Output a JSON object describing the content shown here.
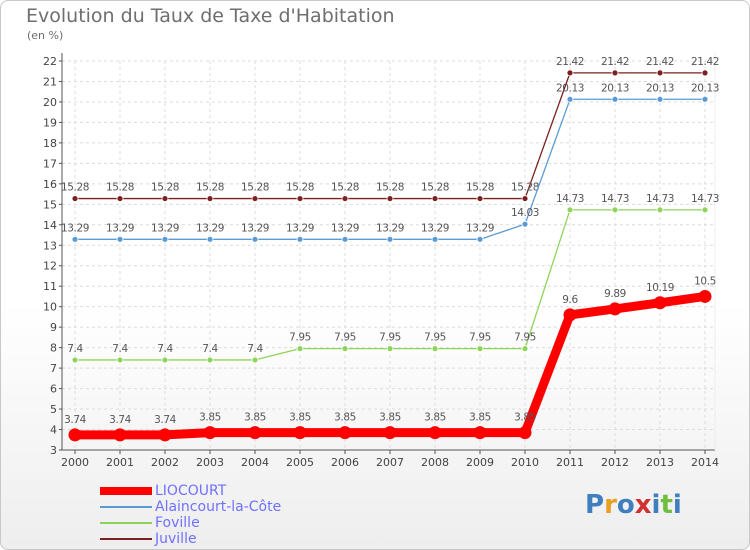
{
  "header": {
    "title": "Evolution du Taux de Taxe d'Habitation",
    "unit": "(en %)"
  },
  "logo": {
    "text": "Proxiti"
  },
  "chart_data": {
    "type": "line",
    "title": "Evolution du Taux de Taxe d'Habitation",
    "ylabel": "(en %)",
    "xlabel": "",
    "ylim": [
      3,
      22
    ],
    "yticks": [
      3,
      4,
      5,
      6,
      7,
      8,
      9,
      10,
      11,
      12,
      13,
      14,
      15,
      16,
      17,
      18,
      19,
      20,
      21,
      22
    ],
    "grid": true,
    "legend": "bottom-left",
    "categories": [
      "2000",
      "2001",
      "2002",
      "2003",
      "2004",
      "2005",
      "2006",
      "2007",
      "2008",
      "2009",
      "2010",
      "2011",
      "2012",
      "2013",
      "2014"
    ],
    "series": [
      {
        "name": "LIOCOURT",
        "color": "#ff0000",
        "emphasis": true,
        "values": [
          3.74,
          3.74,
          3.74,
          3.85,
          3.85,
          3.85,
          3.85,
          3.85,
          3.85,
          3.85,
          3.85,
          9.6,
          9.89,
          10.19,
          10.5
        ],
        "labels": [
          "3.74",
          "3.74",
          "3.74",
          "3.85",
          "3.85",
          "3.85",
          "3.85",
          "3.85",
          "3.85",
          "3.85",
          "3.85",
          "9.6",
          "9.89",
          "10.19",
          "10.5"
        ]
      },
      {
        "name": "Alaincourt-la-Côte",
        "color": "#5b9bd5",
        "values": [
          13.29,
          13.29,
          13.29,
          13.29,
          13.29,
          13.29,
          13.29,
          13.29,
          13.29,
          13.29,
          14.03,
          20.13,
          20.13,
          20.13,
          20.13
        ],
        "labels": [
          "13.29",
          "13.29",
          "13.29",
          "13.29",
          "13.29",
          "13.29",
          "13.29",
          "13.29",
          "13.29",
          "13.29",
          "14.03",
          "20.13",
          "20.13",
          "20.13",
          "20.13"
        ]
      },
      {
        "name": "Foville",
        "color": "#8fd45a",
        "values": [
          7.4,
          7.4,
          7.4,
          7.4,
          7.4,
          7.95,
          7.95,
          7.95,
          7.95,
          7.95,
          7.95,
          14.73,
          14.73,
          14.73,
          14.73
        ],
        "labels": [
          "7.4",
          "7.4",
          "7.4",
          "7.4",
          "7.4",
          "7.95",
          "7.95",
          "7.95",
          "7.95",
          "7.95",
          "7.95",
          "14.73",
          "14.73",
          "14.73",
          "14.73"
        ]
      },
      {
        "name": "Juville",
        "color": "#7b1f1f",
        "values": [
          15.28,
          15.28,
          15.28,
          15.28,
          15.28,
          15.28,
          15.28,
          15.28,
          15.28,
          15.28,
          15.28,
          21.42,
          21.42,
          21.42,
          21.42
        ],
        "labels": [
          "15.28",
          "15.28",
          "15.28",
          "15.28",
          "15.28",
          "15.28",
          "15.28",
          "15.28",
          "15.28",
          "15.28",
          "15.28",
          "21.42",
          "21.42",
          "21.42",
          "21.42"
        ]
      }
    ]
  }
}
